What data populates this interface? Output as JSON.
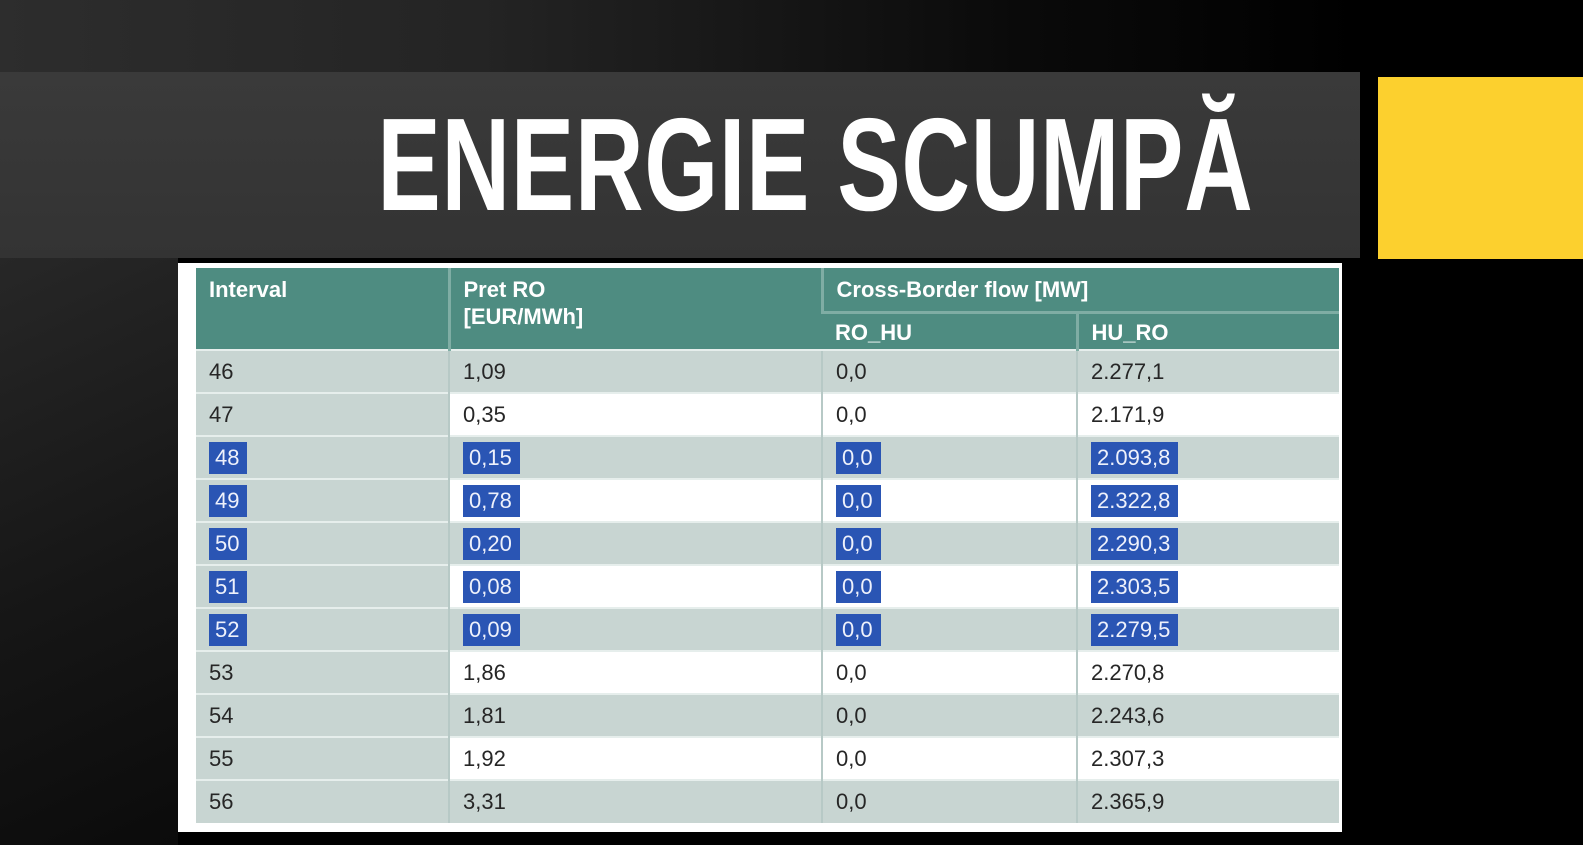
{
  "slide": {
    "title": "ENERGIE SCUMPĂ"
  },
  "colors": {
    "accent_yellow": "#fcd02e",
    "banner_gray": "#363636",
    "header_teal": "#4e8c81",
    "row_gray": "#c8d5d2",
    "selection_blue": "#2a55b4"
  },
  "table": {
    "header": {
      "interval": "Interval",
      "pret_line1": "Pret RO",
      "pret_line2": "[EUR/MWh]",
      "cross_border_group": "Cross-Border flow [MW]",
      "ro_hu": "RO_HU",
      "hu_ro": "HU_RO"
    },
    "rows": [
      {
        "interval": "46",
        "pret": "1,09",
        "ro_hu": "0,0",
        "hu_ro": "2.277,1",
        "selected": false
      },
      {
        "interval": "47",
        "pret": "0,35",
        "ro_hu": "0,0",
        "hu_ro": "2.171,9",
        "selected": false
      },
      {
        "interval": "48",
        "pret": "0,15",
        "ro_hu": "0,0",
        "hu_ro": "2.093,8",
        "selected": true
      },
      {
        "interval": "49",
        "pret": "0,78",
        "ro_hu": "0,0",
        "hu_ro": "2.322,8",
        "selected": true
      },
      {
        "interval": "50",
        "pret": "0,20",
        "ro_hu": "0,0",
        "hu_ro": "2.290,3",
        "selected": true
      },
      {
        "interval": "51",
        "pret": "0,08",
        "ro_hu": "0,0",
        "hu_ro": "2.303,5",
        "selected": true
      },
      {
        "interval": "52",
        "pret": "0,09",
        "ro_hu": "0,0",
        "hu_ro": "2.279,5",
        "selected": true
      },
      {
        "interval": "53",
        "pret": "1,86",
        "ro_hu": "0,0",
        "hu_ro": "2.270,8",
        "selected": false
      },
      {
        "interval": "54",
        "pret": "1,81",
        "ro_hu": "0,0",
        "hu_ro": "2.243,6",
        "selected": false
      },
      {
        "interval": "55",
        "pret": "1,92",
        "ro_hu": "0,0",
        "hu_ro": "2.307,3",
        "selected": false
      },
      {
        "interval": "56",
        "pret": "3,31",
        "ro_hu": "0,0",
        "hu_ro": "2.365,9",
        "selected": false
      }
    ]
  }
}
